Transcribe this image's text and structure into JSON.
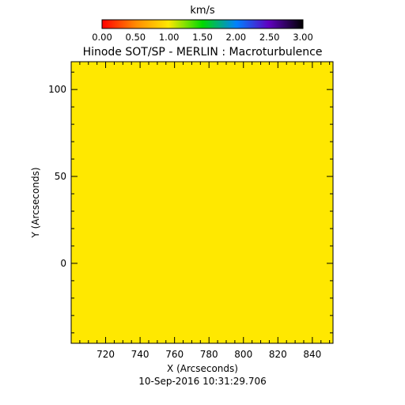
{
  "colorbar": {
    "unit": "km/s",
    "range": [
      0.0,
      3.0
    ],
    "ticks": [
      "0.00",
      "0.50",
      "1.00",
      "1.50",
      "2.00",
      "2.50",
      "3.00"
    ]
  },
  "chart_data": {
    "type": "heatmap",
    "title": "Hinode SOT/SP - MERLIN : Macroturbulence",
    "xlabel": "X (Arcseconds)",
    "ylabel": "Y (Arcseconds)",
    "xlim": [
      700,
      852
    ],
    "ylim": [
      -46,
      116
    ],
    "xticks": [
      720,
      740,
      760,
      780,
      800,
      820,
      840
    ],
    "yticks": [
      0,
      50,
      100
    ],
    "grid": false,
    "fill_value_kms": 1.0,
    "fill_color": "#ffe800"
  },
  "timestamp": "10-Sep-2016 10:31:29.706"
}
